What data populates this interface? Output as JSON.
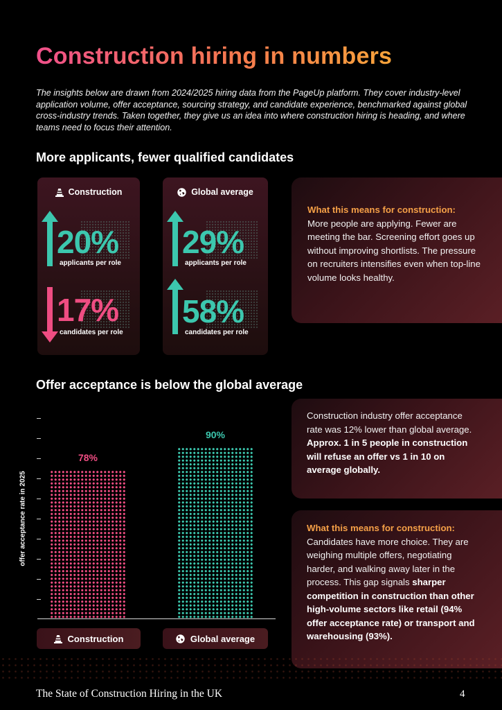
{
  "header": {
    "title": "Construction hiring in numbers",
    "intro": "The insights below are drawn from 2024/2025 hiring data from the PageUp platform. They cover industry-level application volume, offer acceptance, sourcing strategy, and candidate experience, benchmarked against global cross-industry trends. Taken together, they give us an idea into where construction hiring is heading, and where teams need to focus their attention."
  },
  "section1": {
    "heading": "More applicants, fewer qualified candidates",
    "construction_card": {
      "label": "Construction",
      "icon": "traffic-cone-icon",
      "stats": [
        {
          "value": "20%",
          "label": "applicants per role",
          "direction": "up",
          "color": "#3cc7ae"
        },
        {
          "value": "17%",
          "label": "candidates per role",
          "direction": "down",
          "color": "#ef4d82"
        }
      ]
    },
    "global_card": {
      "label": "Global average",
      "icon": "globe-icon",
      "stats": [
        {
          "value": "29%",
          "label": "applicants per role",
          "direction": "up",
          "color": "#3cc7ae"
        },
        {
          "value": "58%",
          "label": "candidates per role",
          "direction": "up",
          "color": "#3cc7ae"
        }
      ]
    },
    "panel": {
      "heading": "What this means for construction:",
      "body": "More people are applying. Fewer are meeting the bar. Screening effort goes up without improving shortlists. The pressure on recruiters intensifies even when top-line volume looks healthy."
    }
  },
  "section2": {
    "heading": "Offer acceptance is below the global average",
    "chart_data": {
      "type": "bar",
      "categories": [
        "Construction",
        "Global average"
      ],
      "values": [
        78,
        90
      ],
      "value_labels": [
        "78%",
        "90%"
      ],
      "colors": [
        "#ef4d82",
        "#3cc7ae"
      ],
      "ylabel": "offer acceptance rate in 2025",
      "ylim": [
        0,
        100
      ],
      "grid": false
    },
    "pill_construction": "Construction",
    "pill_global": "Global average",
    "panel_top": {
      "body": "Construction industry offer acceptance rate was 12% lower than global average.",
      "bold": "Approx. 1 in 5 people in construction will refuse an offer vs 1 in 10 on average globally."
    },
    "panel_bottom": {
      "heading": "What this means for construction:",
      "body_start": "Candidates have more choice. They are weighing multiple offers, negotiating harder, and walking away later in the process. This gap signals ",
      "bold": "sharper competition in construction than other high-volume sectors like retail (94% offer acceptance rate) or transport and warehousing (93%)."
    }
  },
  "footer": {
    "title": "The State of Construction Hiring in the UK",
    "page": "4"
  }
}
